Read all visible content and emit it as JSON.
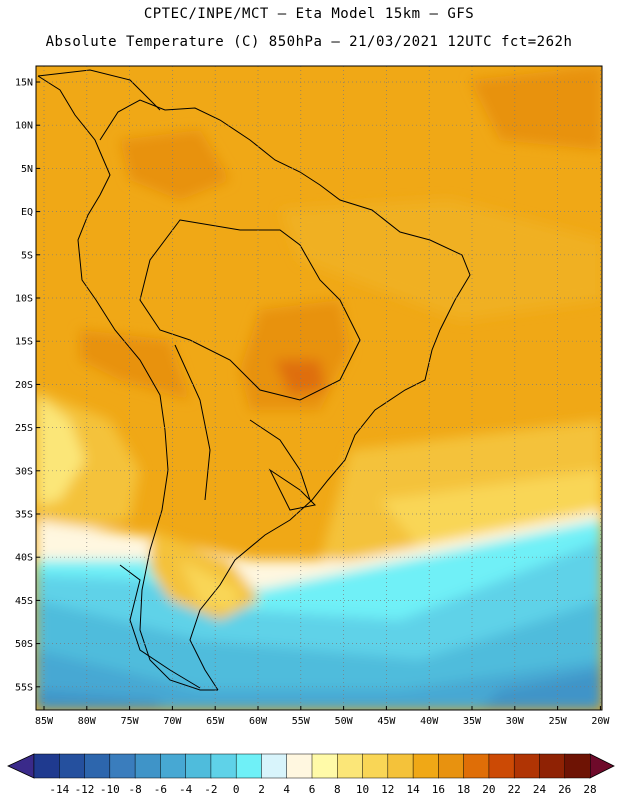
{
  "header": {
    "line1": "CPTEC/INPE/MCT –  Eta Model 15km – GFS",
    "line2": "Absolute Temperature (C) 850hPa – 21/03/2021 12UTC fct=262h"
  },
  "lat_labels": [
    "15N",
    "10N",
    "5N",
    "EQ",
    "5S",
    "10S",
    "15S",
    "20S",
    "25S",
    "30S",
    "35S",
    "40S",
    "45S",
    "50S",
    "55S"
  ],
  "lon_labels": [
    "85W",
    "80W",
    "75W",
    "70W",
    "65W",
    "60W",
    "55W",
    "50W",
    "45W",
    "40W",
    "35W",
    "30W",
    "25W",
    "20W"
  ],
  "colorbar": {
    "ticks": [
      "-14",
      "-12",
      "-10",
      "-8",
      "-6",
      "-4",
      "-2",
      "0",
      "2",
      "4",
      "6",
      "8",
      "10",
      "12",
      "14",
      "16",
      "18",
      "20",
      "22",
      "24",
      "26",
      "28"
    ],
    "colors": [
      "#1f3a8f",
      "#25509e",
      "#2d66ad",
      "#3a7dbd",
      "#3f94c8",
      "#47a8d3",
      "#4fbcdc",
      "#5fd2e8",
      "#6ff0f7",
      "#d8f4fb",
      "#fff7e0",
      "#fffaa8",
      "#fbe678",
      "#f9d656",
      "#f4c23a",
      "#f0a816",
      "#e8920f",
      "#df6e07",
      "#cc4a05",
      "#b03404",
      "#8f2204",
      "#6e1304"
    ],
    "unit": "C"
  }
}
